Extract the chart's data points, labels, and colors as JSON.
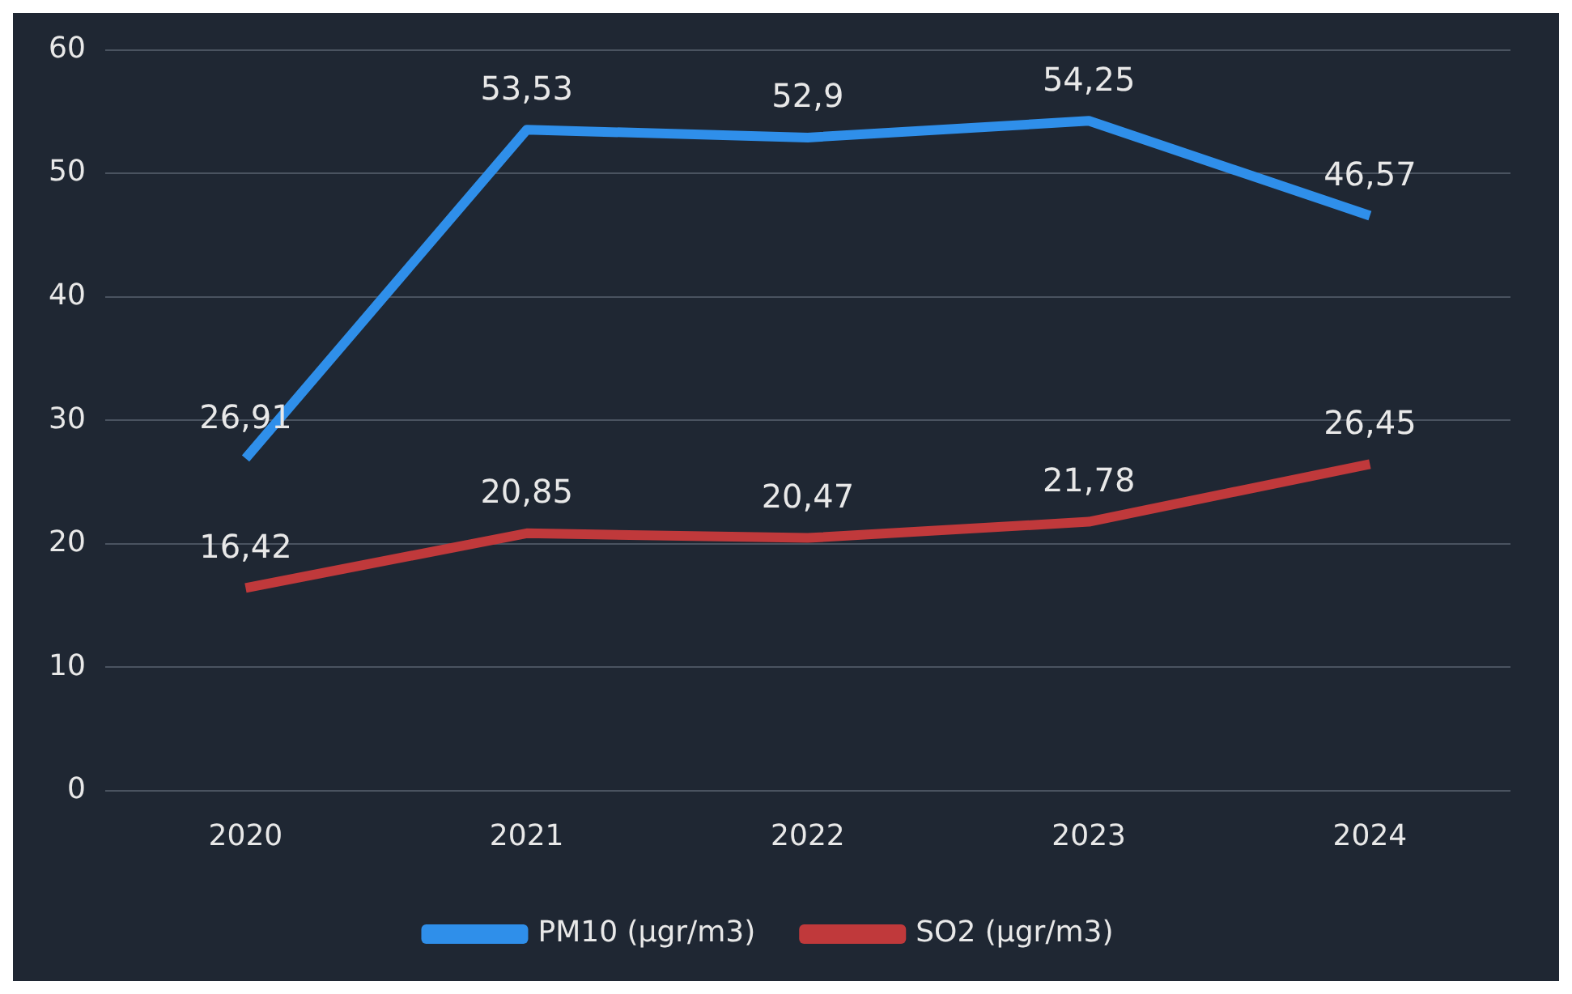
{
  "chart_data": {
    "type": "line",
    "categories": [
      "2020",
      "2021",
      "2022",
      "2023",
      "2024"
    ],
    "series": [
      {
        "name": "PM10 (µgr/m3)",
        "color": "#2f8fea",
        "values": [
          26.91,
          53.53,
          52.9,
          54.25,
          46.57
        ],
        "value_labels": [
          "26,91",
          "53,53",
          "52,9",
          "54,25",
          "46,57"
        ]
      },
      {
        "name": "SO2 (µgr/m3)",
        "color": "#c0393b",
        "values": [
          16.42,
          20.85,
          20.47,
          21.78,
          26.45
        ],
        "value_labels": [
          "16,42",
          "20,85",
          "20,47",
          "21,78",
          "26,45"
        ]
      }
    ],
    "ylim": [
      0,
      60
    ],
    "yticks": [
      0,
      10,
      20,
      30,
      40,
      50,
      60
    ],
    "grid": "y",
    "legend": "bottom",
    "marker": "none",
    "line_style": "solid"
  }
}
